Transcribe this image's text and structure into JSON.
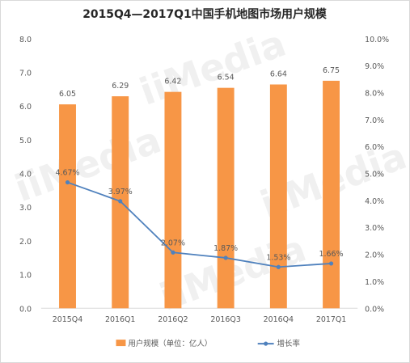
{
  "chart_data": {
    "type": "bar",
    "title": "2015Q4—2017Q1中国手机地图市场用户规模",
    "categories": [
      "2015Q4",
      "2016Q1",
      "2016Q2",
      "2016Q3",
      "2016Q4",
      "2017Q1"
    ],
    "series": [
      {
        "name": "用户规模（单位：亿人）",
        "type": "bar",
        "axis": "left",
        "values": [
          6.05,
          6.29,
          6.42,
          6.54,
          6.64,
          6.75
        ],
        "labels": [
          "6.05",
          "6.29",
          "6.42",
          "6.54",
          "6.64",
          "6.75"
        ],
        "color": "#f79646"
      },
      {
        "name": "增长率",
        "type": "line",
        "axis": "right",
        "values": [
          4.67,
          3.97,
          2.07,
          1.87,
          1.53,
          1.66
        ],
        "labels": [
          "4.67%",
          "3.97%",
          "2.07%",
          "1.87%",
          "1.53%",
          "1.66%"
        ],
        "color": "#4f81bd"
      }
    ],
    "ylim_left": [
      0,
      8
    ],
    "yticks_left": [
      "0.0",
      "1.0",
      "2.0",
      "3.0",
      "4.0",
      "5.0",
      "6.0",
      "7.0",
      "8.0"
    ],
    "ylim_right": [
      0,
      10
    ],
    "yticks_right": [
      "0.0%",
      "1.0%",
      "2.0%",
      "3.0%",
      "4.0%",
      "5.0%",
      "6.0%",
      "7.0%",
      "8.0%",
      "9.0%",
      "10.0%"
    ],
    "grid": false,
    "legend": "bottom",
    "watermark": "iiMedia"
  }
}
